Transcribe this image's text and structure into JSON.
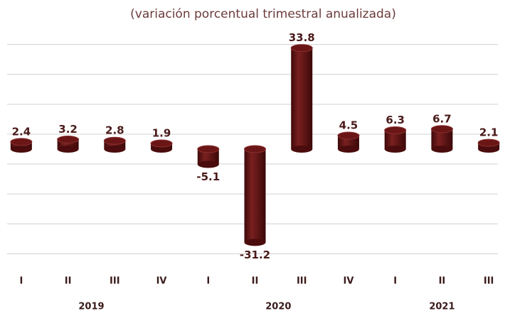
{
  "chart_data": {
    "type": "bar",
    "subtitle": "(variación porcentual trimestral anualizada)",
    "categories": [
      "I",
      "II",
      "III",
      "IV",
      "I",
      "II",
      "III",
      "IV",
      "I",
      "II",
      "III"
    ],
    "groups": [
      {
        "name": "2019",
        "size": 4
      },
      {
        "name": "2020",
        "size": 4
      },
      {
        "name": "2021",
        "size": 3
      }
    ],
    "values": [
      2.4,
      3.2,
      2.8,
      1.9,
      -5.1,
      -31.2,
      33.8,
      4.5,
      6.3,
      6.7,
      2.1
    ],
    "color": "#6b1616",
    "ylim": [
      -38,
      38
    ],
    "yticks": [
      -35,
      -25,
      -15,
      -5,
      5,
      15,
      25,
      35
    ],
    "grid": true
  }
}
